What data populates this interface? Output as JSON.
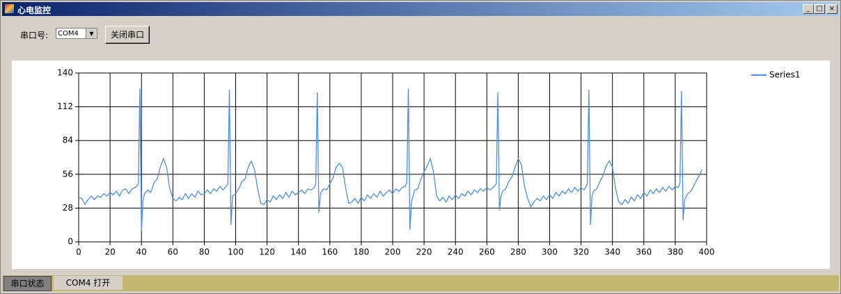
{
  "window": {
    "title": "心电监控"
  },
  "toolbar": {
    "port_label": "串口号:",
    "port_value": "COM4",
    "button": "关闭串口"
  },
  "chart_data": {
    "type": "line",
    "x": [
      0,
      2,
      4,
      6,
      8,
      10,
      12,
      14,
      16,
      18,
      20,
      22,
      24,
      26,
      28,
      30,
      32,
      34,
      36,
      38,
      39,
      40,
      41,
      42,
      44,
      46,
      48,
      50,
      52,
      54,
      56,
      58,
      60,
      62,
      64,
      66,
      68,
      70,
      72,
      74,
      76,
      78,
      80,
      82,
      84,
      86,
      88,
      90,
      92,
      94,
      95,
      96,
      97,
      98,
      100,
      102,
      104,
      106,
      108,
      110,
      112,
      114,
      116,
      118,
      120,
      122,
      124,
      126,
      128,
      130,
      132,
      134,
      136,
      138,
      140,
      142,
      144,
      146,
      148,
      150,
      151,
      152,
      153,
      154,
      156,
      158,
      160,
      162,
      164,
      166,
      168,
      170,
      172,
      174,
      176,
      178,
      180,
      182,
      184,
      186,
      188,
      190,
      192,
      194,
      196,
      198,
      200,
      202,
      204,
      206,
      208,
      209,
      210,
      211,
      212,
      214,
      216,
      218,
      220,
      222,
      224,
      226,
      228,
      230,
      232,
      234,
      236,
      238,
      240,
      242,
      244,
      246,
      248,
      250,
      252,
      254,
      256,
      258,
      260,
      262,
      264,
      266,
      267,
      268,
      269,
      270,
      272,
      274,
      276,
      278,
      280,
      282,
      284,
      286,
      288,
      290,
      292,
      294,
      296,
      298,
      300,
      302,
      304,
      306,
      308,
      310,
      312,
      314,
      316,
      318,
      320,
      322,
      324,
      325,
      326,
      327,
      328,
      330,
      332,
      334,
      336,
      338,
      340,
      342,
      344,
      346,
      348,
      350,
      352,
      354,
      356,
      358,
      360,
      362,
      364,
      366,
      368,
      370,
      372,
      374,
      376,
      378,
      380,
      382,
      383,
      384,
      385,
      386,
      388,
      390,
      392,
      394,
      396,
      397
    ],
    "series": [
      {
        "name": "Series1",
        "color": "#4a8fe0",
        "values": [
          37,
          36,
          31,
          35,
          38,
          35,
          38,
          37,
          40,
          38,
          41,
          39,
          42,
          38,
          43,
          44,
          40,
          44,
          45,
          48,
          127,
          9,
          35,
          40,
          43,
          41,
          49,
          52,
          62,
          69,
          62,
          44,
          36,
          34,
          37,
          35,
          40,
          36,
          40,
          37,
          42,
          39,
          40,
          43,
          40,
          44,
          42,
          46,
          43,
          46,
          48,
          126,
          14,
          38,
          40,
          44,
          50,
          52,
          62,
          67,
          60,
          44,
          32,
          31,
          35,
          33,
          38,
          35,
          39,
          36,
          41,
          37,
          42,
          39,
          41,
          43,
          40,
          44,
          43,
          45,
          48,
          124,
          24,
          40,
          44,
          43,
          48,
          53,
          62,
          65,
          62,
          45,
          32,
          33,
          36,
          32,
          37,
          34,
          39,
          36,
          40,
          37,
          42,
          38,
          41,
          43,
          40,
          44,
          42,
          45,
          46,
          49,
          127,
          10,
          33,
          43,
          44,
          52,
          58,
          63,
          69,
          58,
          38,
          34,
          37,
          33,
          38,
          35,
          39,
          36,
          40,
          38,
          42,
          39,
          43,
          41,
          44,
          42,
          45,
          43,
          45,
          48,
          124,
          26,
          38,
          42,
          44,
          50,
          54,
          62,
          69,
          64,
          46,
          36,
          29,
          33,
          36,
          34,
          38,
          35,
          39,
          36,
          41,
          38,
          42,
          40,
          44,
          41,
          45,
          42,
          45,
          43,
          48,
          126,
          14,
          38,
          42,
          44,
          50,
          55,
          63,
          67,
          62,
          44,
          33,
          31,
          35,
          32,
          37,
          34,
          39,
          36,
          41,
          38,
          43,
          40,
          44,
          41,
          45,
          42,
          46,
          43,
          46,
          45,
          49,
          125,
          18,
          35,
          40,
          42,
          47,
          52,
          57,
          60
        ]
      }
    ],
    "xlim": [
      0,
      400
    ],
    "xticks": [
      0,
      20,
      40,
      60,
      80,
      100,
      120,
      140,
      160,
      180,
      200,
      220,
      240,
      260,
      280,
      300,
      320,
      340,
      360,
      380,
      400
    ],
    "ylim": [
      0,
      140
    ],
    "yticks": [
      0,
      28,
      56,
      84,
      112,
      140
    ],
    "grid": true
  },
  "status_bar": {
    "label": "串口状态",
    "value": "COM4 打开"
  }
}
